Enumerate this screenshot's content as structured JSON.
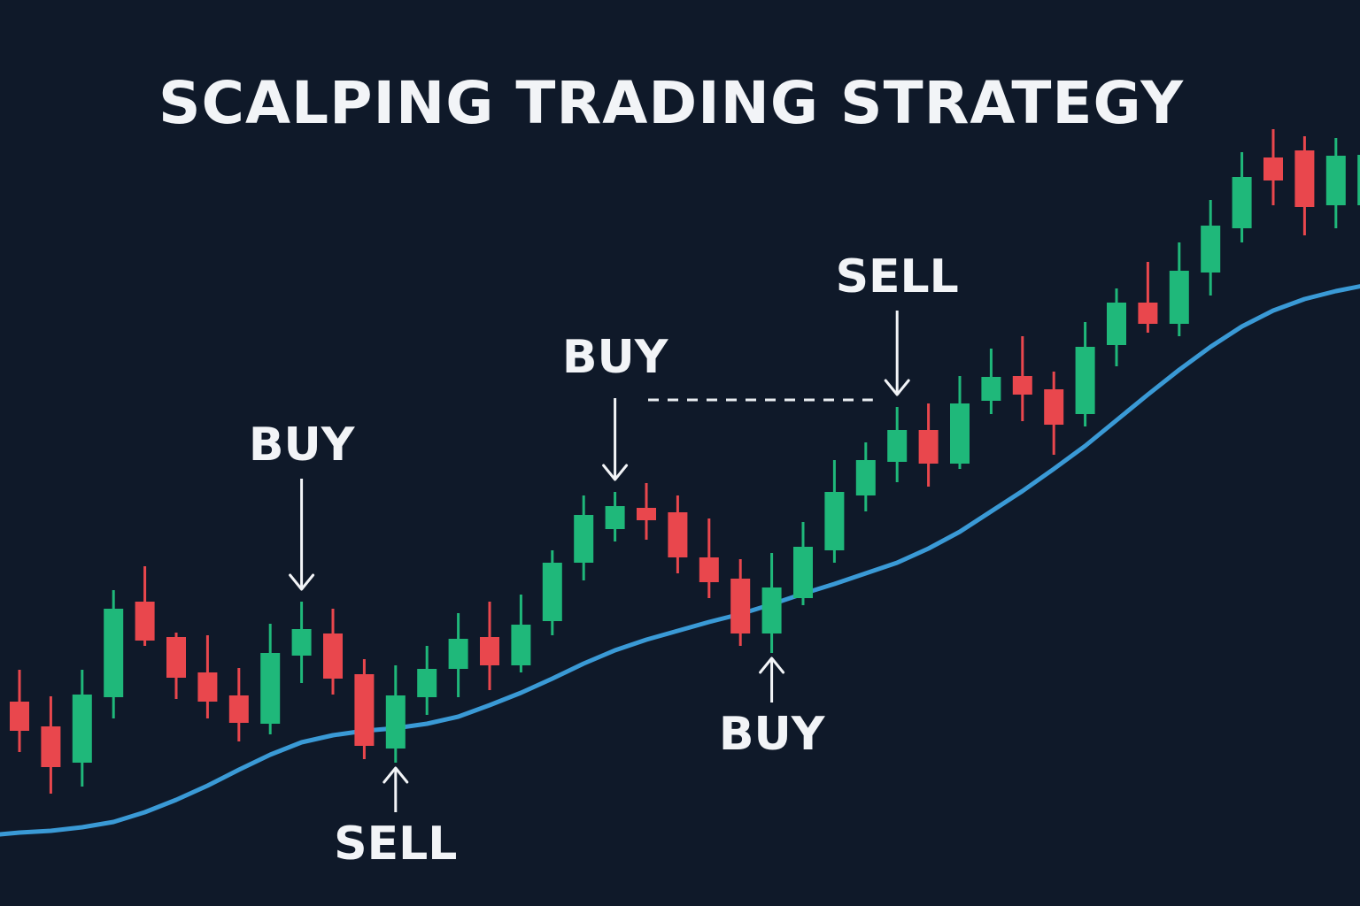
{
  "title": "SCALPING TRADING STRATEGY",
  "chart_data": {
    "type": "candlestick",
    "title": "SCALPING TRADING STRATEGY",
    "xlabel": "",
    "ylabel": "",
    "axes_visible": false,
    "grid": false,
    "colors": {
      "background": "#0f1929",
      "up": "#1fb87a",
      "down": "#e9474d",
      "moving_average": "#3a9ad6",
      "text": "#f2f4f7"
    },
    "candles": [
      [
        20.7,
        24.3,
        15.0,
        17.4
      ],
      [
        17.9,
        21.3,
        10.3,
        13.3
      ],
      [
        13.8,
        24.3,
        11.1,
        21.5
      ],
      [
        21.2,
        33.3,
        18.8,
        31.2
      ],
      [
        32.0,
        36.0,
        27.0,
        27.6
      ],
      [
        28.0,
        28.5,
        21.0,
        23.4
      ],
      [
        24.0,
        28.2,
        18.8,
        20.7
      ],
      [
        21.4,
        24.5,
        16.2,
        18.3
      ],
      [
        18.2,
        29.5,
        17.0,
        26.2
      ],
      [
        25.9,
        32.0,
        22.8,
        28.9
      ],
      [
        28.4,
        31.2,
        21.5,
        23.3
      ],
      [
        23.8,
        25.5,
        14.2,
        15.7
      ],
      [
        15.4,
        24.8,
        13.8,
        21.4
      ],
      [
        21.2,
        27.0,
        19.2,
        24.4
      ],
      [
        24.4,
        30.7,
        21.2,
        27.8
      ],
      [
        28.0,
        32.0,
        22.0,
        24.8
      ],
      [
        24.8,
        32.8,
        24.0,
        29.4
      ],
      [
        29.8,
        37.8,
        28.2,
        36.4
      ],
      [
        36.4,
        44.0,
        34.4,
        41.8
      ],
      [
        40.2,
        44.4,
        38.8,
        42.8
      ],
      [
        42.6,
        45.4,
        39.0,
        41.2
      ],
      [
        42.1,
        44.0,
        35.2,
        37.0
      ],
      [
        37.0,
        41.4,
        32.4,
        34.2
      ],
      [
        34.6,
        36.8,
        27.0,
        28.4
      ],
      [
        28.4,
        37.5,
        26.2,
        33.6
      ],
      [
        32.4,
        41.0,
        31.6,
        38.2
      ],
      [
        37.8,
        48.0,
        36.4,
        44.4
      ],
      [
        44.0,
        50.0,
        42.2,
        48.0
      ],
      [
        47.8,
        54.0,
        45.5,
        51.4
      ],
      [
        51.4,
        54.4,
        45.0,
        47.6
      ],
      [
        47.6,
        57.5,
        47.0,
        54.4
      ],
      [
        54.7,
        60.6,
        53.2,
        57.4
      ],
      [
        57.5,
        62.0,
        52.4,
        55.4
      ],
      [
        56.0,
        58.0,
        48.6,
        52.0
      ],
      [
        53.2,
        63.6,
        51.8,
        60.8
      ],
      [
        61.0,
        67.4,
        58.6,
        65.8
      ],
      [
        65.8,
        70.4,
        62.4,
        63.4
      ],
      [
        63.4,
        72.6,
        62.0,
        69.4
      ],
      [
        69.2,
        77.4,
        66.6,
        74.5
      ],
      [
        74.2,
        82.8,
        72.6,
        80.0
      ],
      [
        82.2,
        85.4,
        76.8,
        79.6
      ],
      [
        83.0,
        84.6,
        73.4,
        76.6
      ],
      [
        76.8,
        84.4,
        74.2,
        82.4
      ],
      [
        76.8,
        85.0,
        75.0,
        82.5
      ]
    ],
    "candle_format": [
      "open",
      "high",
      "low",
      "close"
    ],
    "moving_average": [
      5.9,
      6.1,
      6.5,
      7.1,
      8.2,
      9.6,
      11.2,
      13.0,
      14.7,
      16.1,
      16.9,
      17.4,
      17.7,
      18.2,
      19.0,
      20.3,
      21.7,
      23.3,
      25.0,
      26.5,
      27.7,
      28.7,
      29.7,
      30.6,
      31.7,
      32.9,
      34.0,
      35.2,
      36.4,
      38.0,
      39.9,
      42.2,
      44.5,
      47.0,
      49.6,
      52.5,
      55.4,
      58.2,
      60.8,
      63.1,
      64.9,
      66.2,
      67.1,
      67.8
    ],
    "annotations": [
      {
        "label": "BUY",
        "candle": 9,
        "direction": "down"
      },
      {
        "label": "SELL",
        "candle": 12,
        "direction": "up"
      },
      {
        "label": "BUY",
        "candle": 19,
        "direction": "down"
      },
      {
        "label": "BUY",
        "candle": 24,
        "direction": "up"
      },
      {
        "label": "SELL",
        "candle": 28,
        "direction": "down"
      }
    ],
    "reference_line": {
      "style": "dashed",
      "from_candle": 20,
      "to_candle": 27,
      "value": 54.8
    }
  }
}
